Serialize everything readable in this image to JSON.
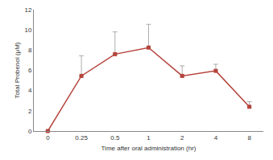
{
  "chart_data": {
    "type": "line",
    "x_label": "Time after oral administration (hr)",
    "y_label": "Total Probenol (μM)",
    "categories": [
      "0",
      "0.25",
      "0.5",
      "1",
      "2",
      "4",
      "8"
    ],
    "values": [
      0,
      5.45,
      7.6,
      8.25,
      5.45,
      5.95,
      2.4
    ],
    "error": [
      0,
      2.0,
      2.2,
      2.3,
      1.0,
      0.65,
      0.5
    ],
    "color": "#b5443c",
    "marker": "square",
    "ylim": [
      0,
      12
    ],
    "yticks": [
      0,
      2,
      4,
      6,
      8,
      10,
      12
    ],
    "grid": false
  }
}
